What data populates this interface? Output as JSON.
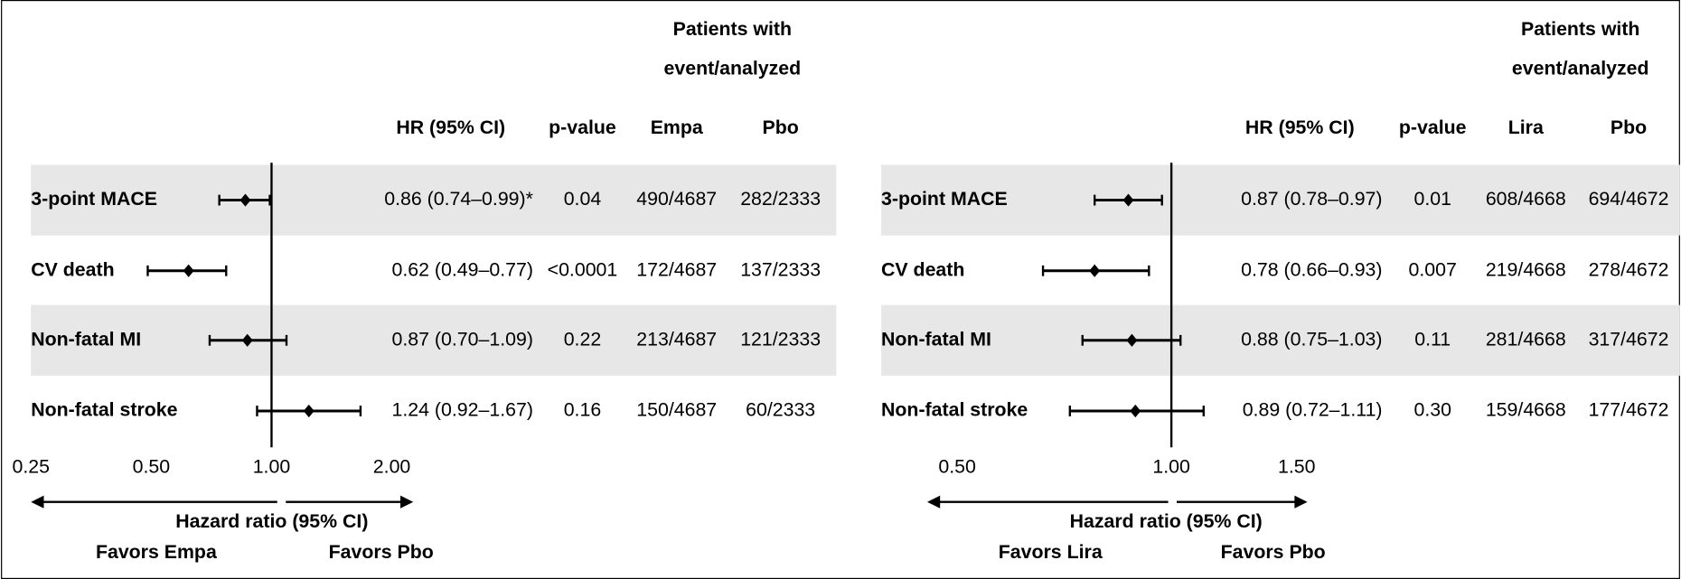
{
  "chart_data": [
    {
      "type": "forest",
      "header": [
        "Patients with",
        "event/analyzed"
      ],
      "columns": {
        "hr": "HR (95% CI)",
        "p": "p-value",
        "treat": "Empa",
        "pbo": "Pbo"
      },
      "categories": [
        "3-point MACE",
        "CV death",
        "Non-fatal MI",
        "Non-fatal stroke"
      ],
      "hr": [
        0.86,
        0.62,
        0.87,
        1.24
      ],
      "ci_low": [
        0.74,
        0.49,
        0.7,
        0.92
      ],
      "ci_high": [
        0.99,
        0.77,
        1.09,
        1.67
      ],
      "hr_labels": [
        "0.86 (0.74–0.99)*",
        "0.62 (0.49–0.77)",
        "0.87 (0.70–1.09)",
        "1.24 (0.92–1.67)"
      ],
      "p_values": [
        "0.04",
        "<0.0001",
        "0.22",
        "0.16"
      ],
      "treat_events": [
        "490/4687",
        "172/4687",
        "213/4687",
        "150/4687"
      ],
      "pbo_events": [
        "282/2333",
        "137/2333",
        "121/2333",
        "60/2333"
      ],
      "xlim": [
        0.25,
        2
      ],
      "xticks": [
        0.25,
        {
          "value": 0.5,
          "label": "0.50"
        },
        {
          "value": 1,
          "label": "1.00"
        },
        {
          "value": 2,
          "label": "2.00"
        }
      ],
      "log_scale": true,
      "xlabel": "Hazard ratio (95% CI)",
      "favors_left": "Favors Empa",
      "favors_right": "Favors Pbo",
      "color": "#000000",
      "row_shade": "#e7e7e7"
    },
    {
      "type": "forest",
      "header": [
        "Patients with",
        "event/analyzed"
      ],
      "columns": {
        "hr": "HR (95% CI)",
        "p": "p-value",
        "treat": "Lira",
        "pbo": "Pbo"
      },
      "categories": [
        "3-point MACE",
        "CV death",
        "Non-fatal MI",
        "Non-fatal stroke"
      ],
      "hr": [
        0.87,
        0.78,
        0.88,
        0.89
      ],
      "ci_low": [
        0.78,
        0.66,
        0.75,
        0.72
      ],
      "ci_high": [
        0.97,
        0.93,
        1.03,
        1.11
      ],
      "hr_labels": [
        "0.87 (0.78–0.97)",
        "0.78 (0.66–0.93)",
        "0.88 (0.75–1.03)",
        "0.89 (0.72–1.11)"
      ],
      "p_values": [
        "0.01",
        "0.007",
        "0.11",
        "0.30"
      ],
      "treat_events": [
        "608/4668",
        "219/4668",
        "281/4668",
        "159/4668"
      ],
      "pbo_events": [
        "694/4672",
        "278/4672",
        "317/4672",
        "177/4672"
      ],
      "xlim": [
        0.5,
        1.5
      ],
      "xticks": [
        {
          "value": 0.5,
          "label": "0.50"
        },
        {
          "value": 1,
          "label": "1.00"
        },
        {
          "value": 1.5,
          "label": "1.50"
        }
      ],
      "log_scale": true,
      "xlabel": "Hazard ratio (95% CI)",
      "favors_left": "Favors Lira",
      "favors_right": "Favors Pbo",
      "color": "#000000",
      "row_shade": "#e7e7e7"
    }
  ]
}
